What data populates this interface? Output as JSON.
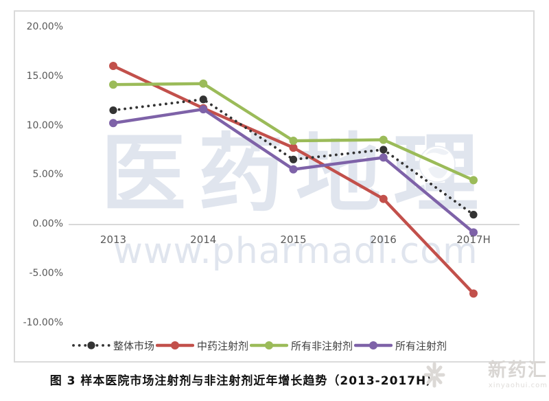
{
  "watermark": {
    "brand": "医药地理",
    "url": "www.pharmadl.com"
  },
  "corner_watermark": {
    "brand": "新药汇",
    "url": "xinyaohui.com"
  },
  "caption": "图 3  样本医院市场注射剂与非注射剂近年增长趋势（2013-2017H）",
  "colors": {
    "frame": "#dadada",
    "zero_line": "#c0c0c0",
    "tick_text": "#595959",
    "legend_text": "#3f3f3f",
    "watermark": "#e0e5ee",
    "corner_watermark": "#d9d6d3"
  },
  "chart_data": {
    "type": "line",
    "title": "图 3 样本医院市场注射剂与非注射剂近年增长趋势（2013-2017H）",
    "unit": "%",
    "categories": [
      "2013",
      "2014",
      "2015",
      "2016",
      "2017H"
    ],
    "series": [
      {
        "name": "整体市场",
        "color": "#333333",
        "style": "dotted",
        "values": [
          11.6,
          12.7,
          6.6,
          7.6,
          1.0
        ]
      },
      {
        "name": "中药注射剂",
        "color": "#c2504b",
        "style": "solid",
        "values": [
          16.1,
          11.8,
          7.8,
          2.6,
          -7.0
        ]
      },
      {
        "name": "所有非注射剂",
        "color": "#9bbb59",
        "style": "solid",
        "values": [
          14.2,
          14.3,
          8.5,
          8.6,
          4.5
        ]
      },
      {
        "name": "所有注射剂",
        "color": "#7e62a8",
        "style": "solid",
        "values": [
          10.3,
          11.7,
          5.6,
          6.8,
          -0.8
        ]
      }
    ],
    "ylim": [
      -10,
      20
    ],
    "ytick_step": 5,
    "ytick_labels": [
      "20.00%",
      "15.00%",
      "10.00%",
      "5.00%",
      "0.00%",
      "-5.00%",
      "-10.00%"
    ],
    "grid": false,
    "legend_position": "bottom"
  }
}
